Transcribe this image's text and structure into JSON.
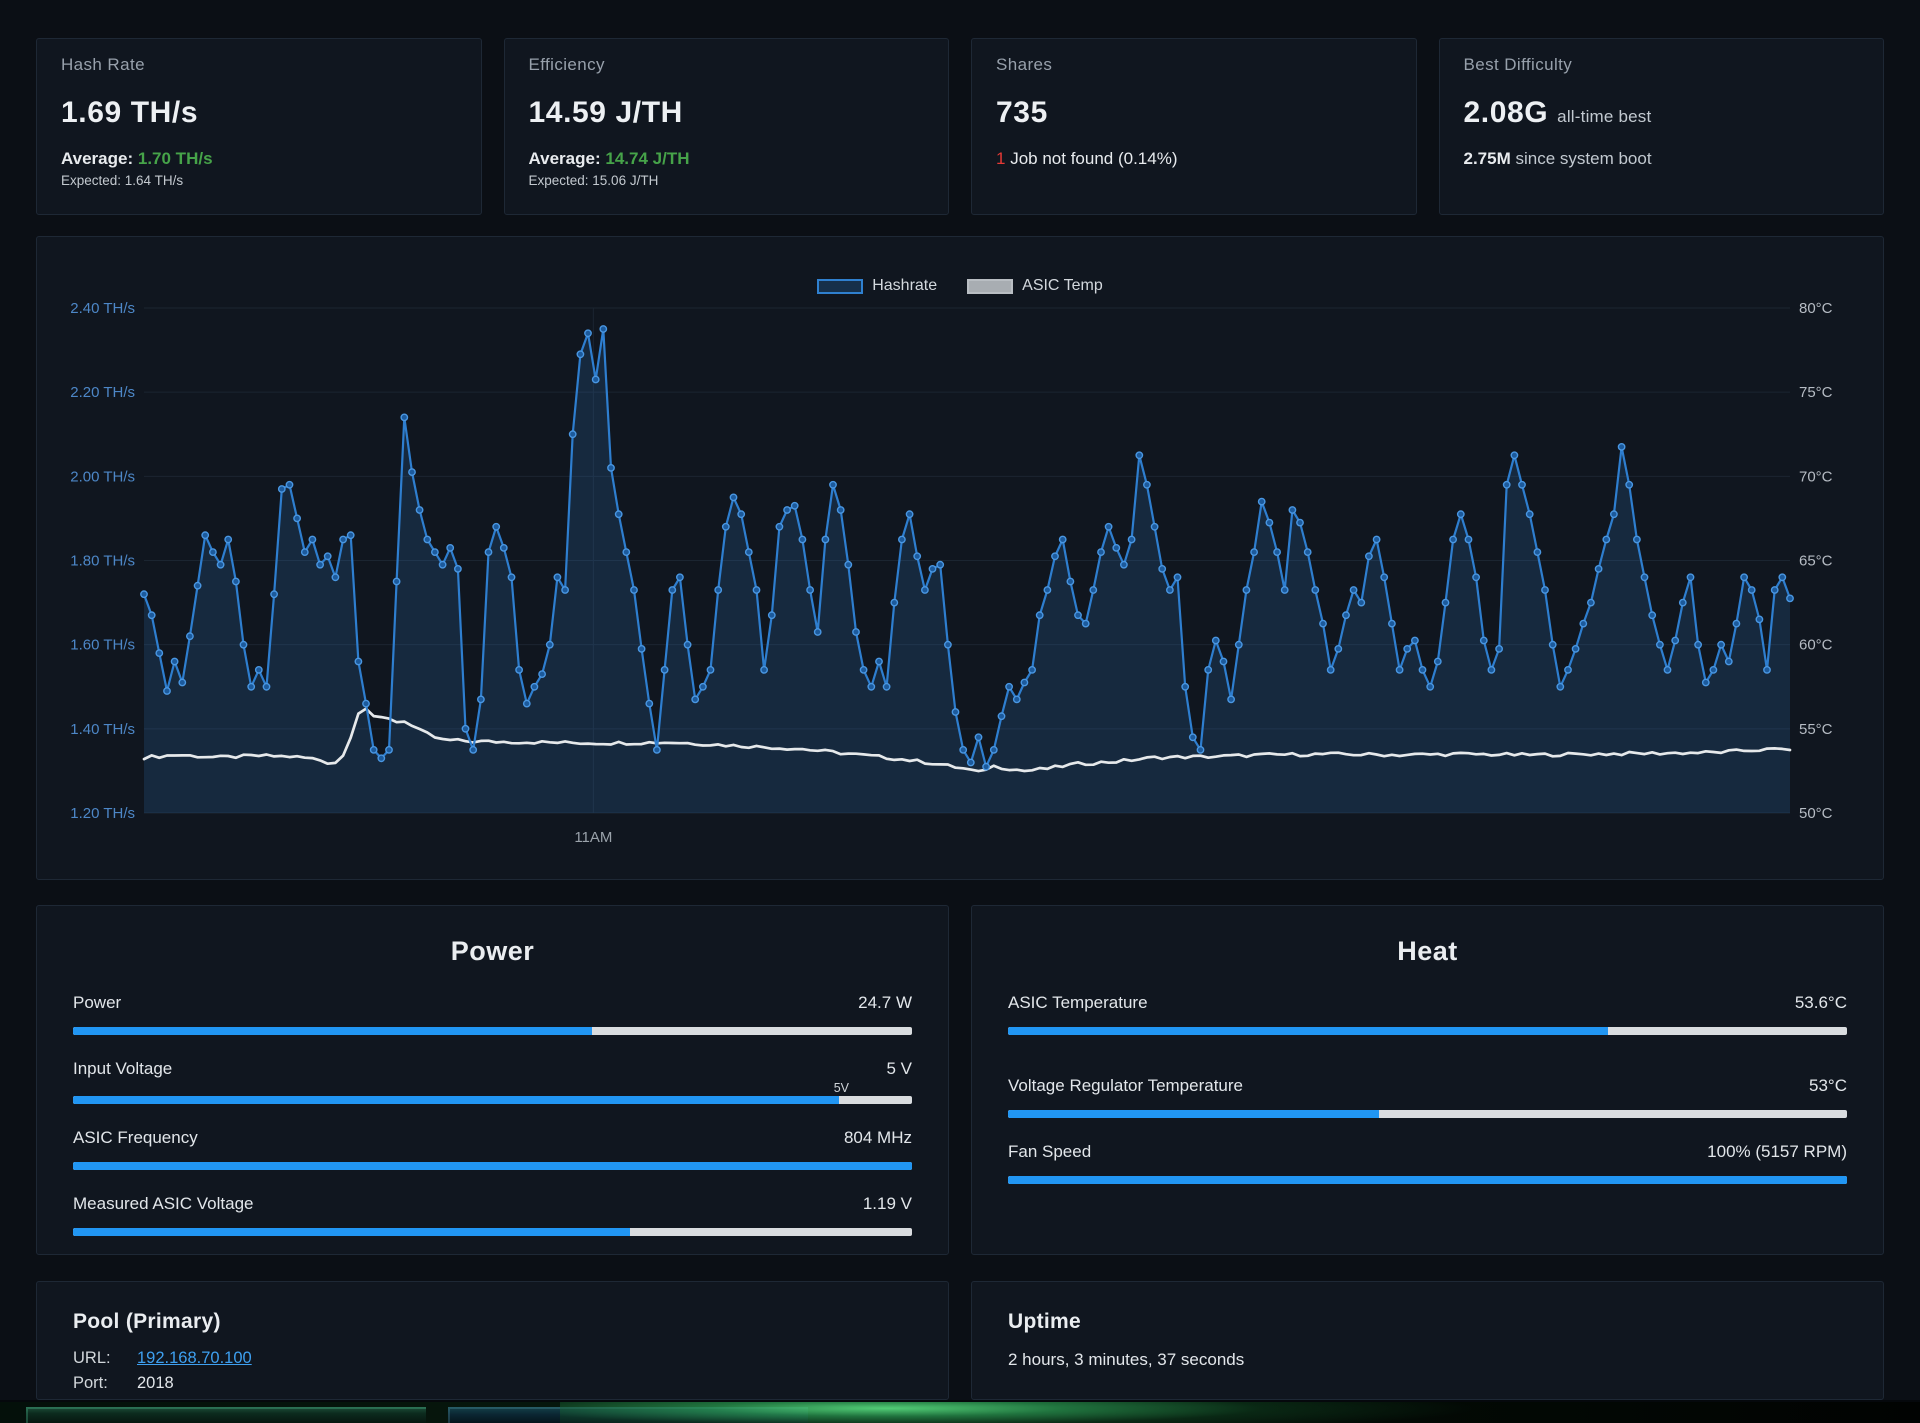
{
  "cards": [
    {
      "label": "Hash Rate",
      "value": "1.69 TH/s",
      "average_label": "Average:",
      "average_value": "1.70 TH/s",
      "expected": "Expected: 1.64 TH/s"
    },
    {
      "label": "Efficiency",
      "value": "14.59 J/TH",
      "average_label": "Average:",
      "average_value": "14.74 J/TH",
      "expected": "Expected: 15.06 J/TH"
    },
    {
      "label": "Shares",
      "value": "735",
      "error_count": "1",
      "error_text": "Job not found (0.14%)"
    },
    {
      "label": "Best Difficulty",
      "value": "2.08G",
      "value_suffix": "all-time best",
      "secondary_value": "2.75M",
      "secondary_suffix": "since system boot"
    }
  ],
  "chart_data": {
    "type": "line",
    "legend": [
      "Hashrate",
      "ASIC Temp"
    ],
    "left_axis": {
      "min": 1.2,
      "max": 2.4,
      "ticks": [
        "2.40 TH/s",
        "2.20 TH/s",
        "2.00 TH/s",
        "1.80 TH/s",
        "1.60 TH/s",
        "1.40 TH/s",
        "1.20 TH/s"
      ]
    },
    "right_axis": {
      "min": 50,
      "max": 80,
      "ticks": [
        "80°C",
        "75°C",
        "70°C",
        "65°C",
        "60°C",
        "55°C",
        "50°C"
      ]
    },
    "x_axis": {
      "ticks": [
        {
          "label": "11AM",
          "frac": 0.273
        }
      ]
    },
    "series": [
      {
        "name": "Hashrate",
        "unit": "TH/s",
        "axis": "left",
        "values": [
          1.72,
          1.67,
          1.58,
          1.49,
          1.56,
          1.51,
          1.62,
          1.74,
          1.86,
          1.82,
          1.79,
          1.85,
          1.75,
          1.6,
          1.5,
          1.54,
          1.5,
          1.72,
          1.97,
          1.98,
          1.9,
          1.82,
          1.85,
          1.79,
          1.81,
          1.76,
          1.85,
          1.86,
          1.56,
          1.46,
          1.35,
          1.33,
          1.35,
          1.75,
          2.14,
          2.01,
          1.92,
          1.85,
          1.82,
          1.79,
          1.83,
          1.78,
          1.4,
          1.35,
          1.47,
          1.82,
          1.88,
          1.83,
          1.76,
          1.54,
          1.46,
          1.5,
          1.53,
          1.6,
          1.76,
          1.73,
          2.1,
          2.29,
          2.34,
          2.23,
          2.35,
          2.02,
          1.91,
          1.82,
          1.73,
          1.59,
          1.46,
          1.35,
          1.54,
          1.73,
          1.76,
          1.6,
          1.47,
          1.5,
          1.54,
          1.73,
          1.88,
          1.95,
          1.91,
          1.82,
          1.73,
          1.54,
          1.67,
          1.88,
          1.92,
          1.93,
          1.85,
          1.73,
          1.63,
          1.85,
          1.98,
          1.92,
          1.79,
          1.63,
          1.54,
          1.5,
          1.56,
          1.5,
          1.7,
          1.85,
          1.91,
          1.81,
          1.73,
          1.78,
          1.79,
          1.6,
          1.44,
          1.35,
          1.32,
          1.38,
          1.31,
          1.35,
          1.43,
          1.5,
          1.47,
          1.51,
          1.54,
          1.67,
          1.73,
          1.81,
          1.85,
          1.75,
          1.67,
          1.65,
          1.73,
          1.82,
          1.88,
          1.83,
          1.79,
          1.85,
          2.05,
          1.98,
          1.88,
          1.78,
          1.73,
          1.76,
          1.5,
          1.38,
          1.35,
          1.54,
          1.61,
          1.56,
          1.47,
          1.6,
          1.73,
          1.82,
          1.94,
          1.89,
          1.82,
          1.73,
          1.92,
          1.89,
          1.82,
          1.73,
          1.65,
          1.54,
          1.59,
          1.67,
          1.73,
          1.7,
          1.81,
          1.85,
          1.76,
          1.65,
          1.54,
          1.59,
          1.61,
          1.54,
          1.5,
          1.56,
          1.7,
          1.85,
          1.91,
          1.85,
          1.76,
          1.61,
          1.54,
          1.59,
          1.98,
          2.05,
          1.98,
          1.91,
          1.82,
          1.73,
          1.6,
          1.5,
          1.54,
          1.59,
          1.65,
          1.7,
          1.78,
          1.85,
          1.91,
          2.07,
          1.98,
          1.85,
          1.76,
          1.67,
          1.6,
          1.54,
          1.61,
          1.7,
          1.76,
          1.6,
          1.51,
          1.54,
          1.6,
          1.56,
          1.65,
          1.76,
          1.73,
          1.66,
          1.54,
          1.73,
          1.76,
          1.71
        ]
      },
      {
        "name": "ASIC Temp",
        "unit": "°C",
        "axis": "right",
        "keyframes": [
          [
            0,
            53.3
          ],
          [
            0.02,
            53.45
          ],
          [
            0.045,
            53.3
          ],
          [
            0.07,
            53.4
          ],
          [
            0.09,
            53.35
          ],
          [
            0.105,
            53.2
          ],
          [
            0.115,
            52.9
          ],
          [
            0.122,
            53.5
          ],
          [
            0.128,
            55.3
          ],
          [
            0.132,
            56.5
          ],
          [
            0.136,
            56.1
          ],
          [
            0.14,
            55.6
          ],
          [
            0.148,
            55.7
          ],
          [
            0.153,
            55.4
          ],
          [
            0.158,
            55.5
          ],
          [
            0.165,
            55.0
          ],
          [
            0.172,
            54.7
          ],
          [
            0.18,
            54.35
          ],
          [
            0.2,
            54.25
          ],
          [
            0.24,
            54.2
          ],
          [
            0.28,
            54.15
          ],
          [
            0.32,
            54.2
          ],
          [
            0.36,
            54.0
          ],
          [
            0.4,
            53.8
          ],
          [
            0.43,
            53.5
          ],
          [
            0.46,
            53.2
          ],
          [
            0.48,
            52.95
          ],
          [
            0.5,
            52.6
          ],
          [
            0.507,
            52.4
          ],
          [
            0.515,
            52.8
          ],
          [
            0.525,
            52.65
          ],
          [
            0.535,
            52.5
          ],
          [
            0.55,
            52.65
          ],
          [
            0.565,
            52.9
          ],
          [
            0.59,
            53.05
          ],
          [
            0.615,
            53.3
          ],
          [
            0.65,
            53.35
          ],
          [
            0.68,
            53.45
          ],
          [
            0.72,
            53.5
          ],
          [
            0.76,
            53.45
          ],
          [
            0.8,
            53.5
          ],
          [
            0.84,
            53.45
          ],
          [
            0.88,
            53.5
          ],
          [
            0.92,
            53.55
          ],
          [
            0.955,
            53.6
          ],
          [
            0.98,
            53.75
          ],
          [
            1,
            53.8
          ]
        ]
      }
    ]
  },
  "power_panel": {
    "title": "Power",
    "rows": [
      {
        "label": "Power",
        "value": "24.7 W",
        "pct": 61.8
      },
      {
        "label": "Input Voltage",
        "value": "5 V",
        "pct": 91.3,
        "marker": "5V"
      },
      {
        "label": "ASIC Frequency",
        "value": "804 MHz",
        "pct": 100
      },
      {
        "label": "Measured ASIC Voltage",
        "value": "1.19 V",
        "pct": 66.4
      }
    ]
  },
  "heat_panel": {
    "title": "Heat",
    "rows": [
      {
        "label": "ASIC Temperature",
        "value": "53.6°C",
        "pct": 71.5
      },
      {
        "label": "Voltage Regulator Temperature",
        "value": "53°C",
        "pct": 44.2
      },
      {
        "label": "Fan Speed",
        "value": "100% (5157 RPM)",
        "pct": 100
      }
    ]
  },
  "pool_panel": {
    "title": "Pool (Primary)",
    "url_label": "URL:",
    "url": "192.168.70.100",
    "port_label": "Port:",
    "port": "2018"
  },
  "uptime_panel": {
    "title": "Uptime",
    "value": "2 hours, 3 minutes, 37 seconds"
  },
  "colors": {
    "accent_blue": "#2196f3",
    "chart_line_blue": "#2e7ecf",
    "chart_marker_stroke": "#4a97e2",
    "chart_marker_fill": "#1c5a9c",
    "chart_area_fill": "rgba(52,122,190,0.20)",
    "temp_line": "#e6e9eb",
    "grid": "#1b2531",
    "left_tick": "#4d87c7",
    "right_tick": "#b6bcc4",
    "x_tick": "#9aa2aa",
    "green": "#46a349",
    "red": "#e53935",
    "link": "#3ea0f0"
  }
}
